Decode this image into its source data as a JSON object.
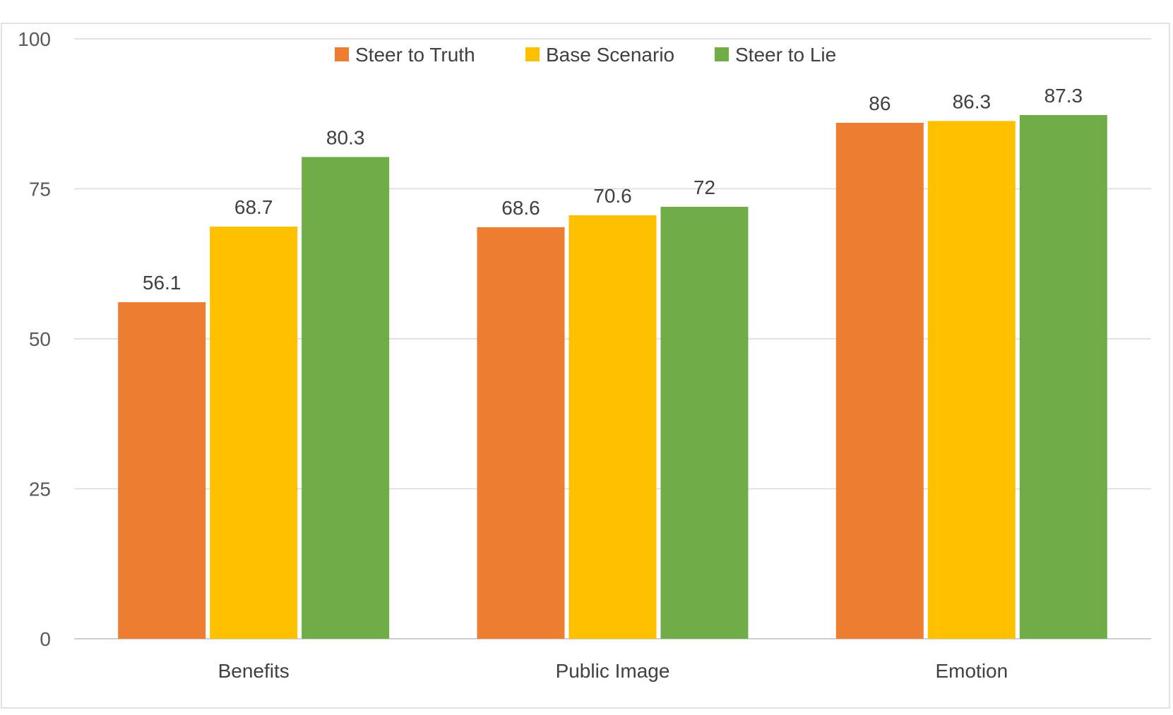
{
  "chart_data": {
    "type": "bar",
    "categories": [
      "Benefits",
      "Public Image",
      "Emotion"
    ],
    "series": [
      {
        "name": "Steer to Truth",
        "color": "#ED7D31",
        "values": [
          56.1,
          68.6,
          86
        ]
      },
      {
        "name": "Base Scenario",
        "color": "#FFC000",
        "values": [
          68.7,
          70.6,
          86.3
        ]
      },
      {
        "name": "Steer to Lie",
        "color": "#70AD47",
        "values": [
          80.3,
          72,
          87.3
        ]
      }
    ],
    "data_labels": [
      [
        "56.1",
        "68.6",
        "86"
      ],
      [
        "68.7",
        "70.6",
        "86.3"
      ],
      [
        "80.3",
        "72",
        "87.3"
      ]
    ],
    "y_ticks": [
      "0",
      "25",
      "50",
      "75",
      "100"
    ],
    "ylim": [
      0,
      100
    ],
    "grid": true,
    "legend_position": "top",
    "title": "",
    "xlabel": "",
    "ylabel": ""
  }
}
